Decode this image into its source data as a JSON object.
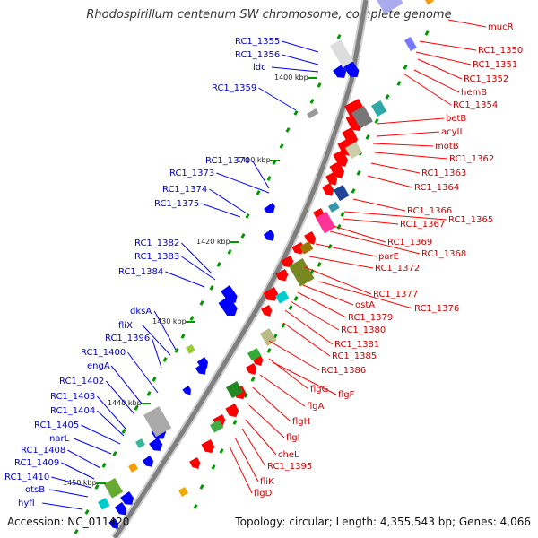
{
  "title": "Rhodospirillum centenum SW chromosome, complete genome",
  "footer": {
    "accession": "Accession: NC_011420",
    "summary": "Topology: circular; Length: 4,355,543 bp; Genes: 4,066"
  },
  "kbp_ticks": [
    "1400 kbp",
    "1410 kbp",
    "1420 kbp",
    "1430 kbp",
    "1440 kbp",
    "1450 kbp"
  ],
  "labels_left": [
    "RC1_1355",
    "RC1_1356",
    "ldc",
    "RC1_1359",
    "RC1_1370",
    "RC1_1373",
    "RC1_1374",
    "RC1_1375",
    "RC1_1382",
    "RC1_1383",
    "RC1_1384",
    "dksA",
    "fliX",
    "RC1_1396",
    "RC1_1400",
    "engA",
    "RC1_1402",
    "RC1_1403",
    "RC1_1404",
    "RC1_1405",
    "narL",
    "RC1_1408",
    "RC1_1409",
    "RC1_1410",
    "otsB",
    "hyfI"
  ],
  "labels_right": [
    "mucR",
    "RC1_1350",
    "RC1_1351",
    "RC1_1352",
    "hemB",
    "RC1_1354",
    "betB",
    "acyII",
    "motB",
    "RC1_1362",
    "RC1_1363",
    "RC1_1364",
    "RC1_1366",
    "RC1_1365",
    "RC1_1367",
    "RC1_1369",
    "RC1_1368",
    "parE",
    "RC1_1372",
    "RC1_1377",
    "RC1_1376",
    "ostA",
    "RC1_1379",
    "RC1_1380",
    "RC1_1381",
    "RC1_1385",
    "RC1_1386",
    "flgG",
    "flgF",
    "flgA",
    "flgH",
    "flgI",
    "cheL",
    "RC1_1395",
    "fliK",
    "flgD"
  ],
  "colors": {
    "backbone": "#7f7f7f",
    "forward_cds": "#ff0000",
    "reverse_cds": "#0000ff",
    "tick_dash": "#009900",
    "left_leader": "#0000ff",
    "right_leader": "#ff0000"
  }
}
